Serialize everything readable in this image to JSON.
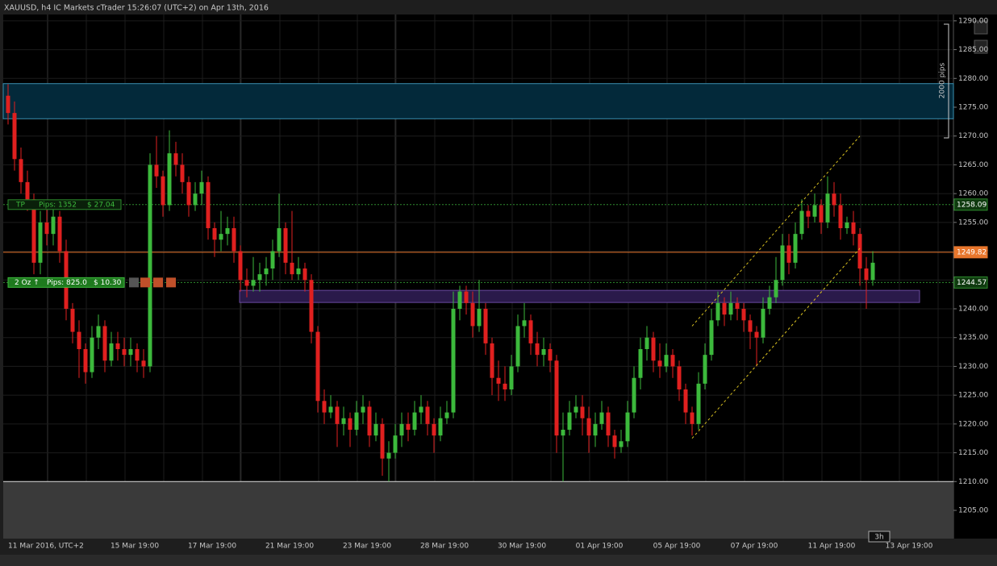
{
  "chart_data": {
    "type": "candlestick",
    "title": "XAUUSD, h4 IC Markets cTrader 15:26:07 (UTC+2) on Apr 13th, 2016",
    "up_color": "#3cb93c",
    "down_color": "#e0201f",
    "ylim": [
      1200.1,
      1291.1
    ],
    "yticks": [
      {
        "value": 1205,
        "label": "1205.00"
      },
      {
        "value": 1210,
        "label": "1210.00"
      },
      {
        "value": 1215,
        "label": "1215.00"
      },
      {
        "value": 1220,
        "label": "1220.00"
      },
      {
        "value": 1225,
        "label": "1225.00"
      },
      {
        "value": 1230,
        "label": "1230.00"
      },
      {
        "value": 1235,
        "label": "1235.00"
      },
      {
        "value": 1240,
        "label": "1240.00"
      },
      {
        "value": 1245,
        "label": "1245.00"
      },
      {
        "value": 1250,
        "label": "1250.00"
      },
      {
        "value": 1255,
        "label": "1255.00"
      },
      {
        "value": 1260,
        "label": "1260.00"
      },
      {
        "value": 1265,
        "label": "1265.00"
      },
      {
        "value": 1270,
        "label": "1270.00"
      },
      {
        "value": 1275,
        "label": "1275.00"
      },
      {
        "value": 1280,
        "label": "1280.00"
      },
      {
        "value": 1285,
        "label": "1285.00"
      },
      {
        "value": 1290,
        "label": "1290.00"
      }
    ],
    "x_labels": [
      "11 Mar 2016, UTC+2",
      "15 Mar 19:00",
      "17 Mar 19:00",
      "21 Mar 19:00",
      "23 Mar 19:00",
      "28 Mar 19:00",
      "30 Mar 19:00",
      "01 Apr 19:00",
      "05 Apr 19:00",
      "07 Apr 19:00",
      "11 Apr 19:00",
      "13 Apr 19:00"
    ],
    "ohlc": [
      [
        1277,
        1279,
        1272,
        1274
      ],
      [
        1274,
        1276,
        1264,
        1266
      ],
      [
        1266,
        1268,
        1260,
        1262
      ],
      [
        1262,
        1264,
        1257,
        1259
      ],
      [
        1259,
        1260,
        1246,
        1248
      ],
      [
        1248,
        1257,
        1246,
        1255
      ],
      [
        1255,
        1258,
        1251,
        1253
      ],
      [
        1253,
        1258,
        1251,
        1256
      ],
      [
        1256,
        1257,
        1248,
        1250
      ],
      [
        1250,
        1252,
        1238,
        1240
      ],
      [
        1240,
        1241,
        1234,
        1236
      ],
      [
        1236,
        1238,
        1228,
        1233
      ],
      [
        1233,
        1234,
        1227,
        1229
      ],
      [
        1229,
        1237,
        1228,
        1235
      ],
      [
        1235,
        1239,
        1233,
        1237
      ],
      [
        1237,
        1238,
        1229,
        1231
      ],
      [
        1231,
        1236,
        1230,
        1234
      ],
      [
        1234,
        1236,
        1231,
        1233
      ],
      [
        1233,
        1235,
        1230,
        1232
      ],
      [
        1232,
        1235,
        1230,
        1233
      ],
      [
        1233,
        1234,
        1229,
        1231
      ],
      [
        1231,
        1233,
        1228,
        1230
      ],
      [
        1230,
        1267,
        1229,
        1265
      ],
      [
        1265,
        1270,
        1261,
        1263
      ],
      [
        1263,
        1264,
        1256,
        1258
      ],
      [
        1258,
        1271,
        1257,
        1267
      ],
      [
        1267,
        1269,
        1263,
        1265
      ],
      [
        1265,
        1267,
        1260,
        1262
      ],
      [
        1262,
        1263,
        1256,
        1258
      ],
      [
        1258,
        1262,
        1257,
        1260
      ],
      [
        1260,
        1264,
        1258,
        1262
      ],
      [
        1262,
        1263,
        1252,
        1254
      ],
      [
        1254,
        1255,
        1249,
        1252
      ],
      [
        1252,
        1257,
        1250,
        1253
      ],
      [
        1253,
        1256,
        1251,
        1254
      ],
      [
        1254,
        1256,
        1248,
        1250
      ],
      [
        1250,
        1251,
        1243,
        1245
      ],
      [
        1245,
        1247,
        1242,
        1244
      ],
      [
        1244,
        1249,
        1243,
        1245
      ],
      [
        1245,
        1248,
        1243,
        1246
      ],
      [
        1246,
        1249,
        1244,
        1247
      ],
      [
        1247,
        1252,
        1245,
        1250
      ],
      [
        1250,
        1260,
        1249,
        1254
      ],
      [
        1254,
        1255,
        1246,
        1248
      ],
      [
        1248,
        1257,
        1245,
        1246
      ],
      [
        1246,
        1249,
        1245,
        1247
      ],
      [
        1247,
        1248,
        1243,
        1245
      ],
      [
        1245,
        1246,
        1234,
        1236
      ],
      [
        1236,
        1237,
        1222,
        1224
      ],
      [
        1224,
        1226,
        1220,
        1222
      ],
      [
        1222,
        1225,
        1221,
        1223
      ],
      [
        1223,
        1224,
        1216,
        1220
      ],
      [
        1220,
        1223,
        1218,
        1221
      ],
      [
        1221,
        1222,
        1216,
        1219
      ],
      [
        1219,
        1224,
        1218,
        1222
      ],
      [
        1222,
        1225,
        1220,
        1223
      ],
      [
        1223,
        1224,
        1216,
        1218
      ],
      [
        1218,
        1222,
        1217,
        1220
      ],
      [
        1220,
        1221,
        1211,
        1214
      ],
      [
        1214,
        1217,
        1210,
        1215
      ],
      [
        1215,
        1220,
        1214,
        1218
      ],
      [
        1218,
        1222,
        1216,
        1220
      ],
      [
        1220,
        1222,
        1217,
        1219
      ],
      [
        1219,
        1224,
        1218,
        1222
      ],
      [
        1222,
        1225,
        1220,
        1223
      ],
      [
        1223,
        1224,
        1218,
        1220
      ],
      [
        1220,
        1221,
        1215,
        1218
      ],
      [
        1218,
        1223,
        1217,
        1221
      ],
      [
        1221,
        1224,
        1220,
        1222
      ],
      [
        1222,
        1243,
        1221,
        1240
      ],
      [
        1240,
        1244,
        1238,
        1243
      ],
      [
        1243,
        1244,
        1239,
        1241
      ],
      [
        1241,
        1243,
        1235,
        1237
      ],
      [
        1237,
        1245,
        1236,
        1240
      ],
      [
        1240,
        1241,
        1232,
        1234
      ],
      [
        1234,
        1235,
        1225,
        1228
      ],
      [
        1228,
        1231,
        1224,
        1227
      ],
      [
        1227,
        1230,
        1224,
        1226
      ],
      [
        1226,
        1232,
        1225,
        1230
      ],
      [
        1230,
        1239,
        1229,
        1237
      ],
      [
        1237,
        1241,
        1235,
        1238
      ],
      [
        1238,
        1239,
        1232,
        1234
      ],
      [
        1234,
        1236,
        1230,
        1232
      ],
      [
        1232,
        1235,
        1230,
        1233
      ],
      [
        1233,
        1234,
        1229,
        1231
      ],
      [
        1231,
        1232,
        1215,
        1218
      ],
      [
        1218,
        1222,
        1210,
        1219
      ],
      [
        1219,
        1224,
        1218,
        1222
      ],
      [
        1222,
        1225,
        1221,
        1223
      ],
      [
        1223,
        1225,
        1218,
        1221
      ],
      [
        1221,
        1223,
        1215,
        1218
      ],
      [
        1218,
        1222,
        1216,
        1220
      ],
      [
        1220,
        1224,
        1219,
        1222
      ],
      [
        1222,
        1223,
        1216,
        1218
      ],
      [
        1218,
        1219,
        1214,
        1216
      ],
      [
        1216,
        1219,
        1215,
        1217
      ],
      [
        1217,
        1224,
        1216,
        1222
      ],
      [
        1222,
        1230,
        1221,
        1228
      ],
      [
        1228,
        1235,
        1226,
        1233
      ],
      [
        1233,
        1237,
        1231,
        1235
      ],
      [
        1235,
        1236,
        1229,
        1231
      ],
      [
        1231,
        1234,
        1228,
        1230
      ],
      [
        1230,
        1234,
        1229,
        1232
      ],
      [
        1232,
        1233,
        1228,
        1230
      ],
      [
        1230,
        1231,
        1224,
        1226
      ],
      [
        1226,
        1227,
        1220,
        1222
      ],
      [
        1222,
        1223,
        1218,
        1220
      ],
      [
        1220,
        1229,
        1219,
        1227
      ],
      [
        1227,
        1234,
        1226,
        1232
      ],
      [
        1232,
        1240,
        1231,
        1238
      ],
      [
        1238,
        1243,
        1237,
        1241
      ],
      [
        1241,
        1242,
        1237,
        1239
      ],
      [
        1239,
        1243,
        1238,
        1241
      ],
      [
        1241,
        1242,
        1238,
        1240
      ],
      [
        1240,
        1241,
        1236,
        1238
      ],
      [
        1238,
        1239,
        1233,
        1236
      ],
      [
        1236,
        1237,
        1230,
        1235
      ],
      [
        1235,
        1242,
        1234,
        1240
      ],
      [
        1240,
        1244,
        1239,
        1242
      ],
      [
        1242,
        1249,
        1241,
        1245
      ],
      [
        1245,
        1253,
        1244,
        1251
      ],
      [
        1251,
        1253,
        1246,
        1248
      ],
      [
        1248,
        1255,
        1247,
        1253
      ],
      [
        1253,
        1259,
        1252,
        1257
      ],
      [
        1257,
        1258,
        1254,
        1256
      ],
      [
        1256,
        1260,
        1255,
        1258
      ],
      [
        1258,
        1259,
        1253,
        1255
      ],
      [
        1255,
        1263,
        1254,
        1260
      ],
      [
        1260,
        1262,
        1256,
        1258
      ],
      [
        1258,
        1260,
        1252,
        1254
      ],
      [
        1254,
        1256,
        1253,
        1255
      ],
      [
        1255,
        1257,
        1251,
        1253
      ],
      [
        1253,
        1254,
        1244,
        1247
      ],
      [
        1247,
        1249,
        1240,
        1245
      ],
      [
        1245,
        1250,
        1244,
        1248
      ]
    ],
    "zones": [
      {
        "top": 1279.1,
        "bottom": 1273.0,
        "color": "#03293a",
        "edge": "#3a8fb0"
      },
      {
        "top": 1243.2,
        "bottom": 1241.1,
        "color": "#2a1a4a",
        "edge": "#6a4aa0"
      }
    ],
    "channels": [
      {
        "x": [
          106,
          132
        ],
        "y": [
          1217.5,
          1250.5
        ]
      },
      {
        "x": [
          106,
          132
        ],
        "y": [
          1237,
          1270
        ]
      }
    ],
    "levels": [
      {
        "value": 1258.09,
        "color": "#2e8b2e"
      },
      {
        "value": 1249.82,
        "color": "#e8762c"
      },
      {
        "value": 1244.57,
        "color": "#2e8b2e"
      }
    ],
    "stop_level": 1210,
    "trade": {
      "tp_label": "TP",
      "tp_pips": "Pips: 1352",
      "tp_money": "$ 27.04",
      "entry_label": "2 Oz ↑",
      "entry_pips": "Pips: 825.0",
      "entry_money": "$ 10.30"
    },
    "measure": "2000 pips",
    "timer": "3h"
  }
}
